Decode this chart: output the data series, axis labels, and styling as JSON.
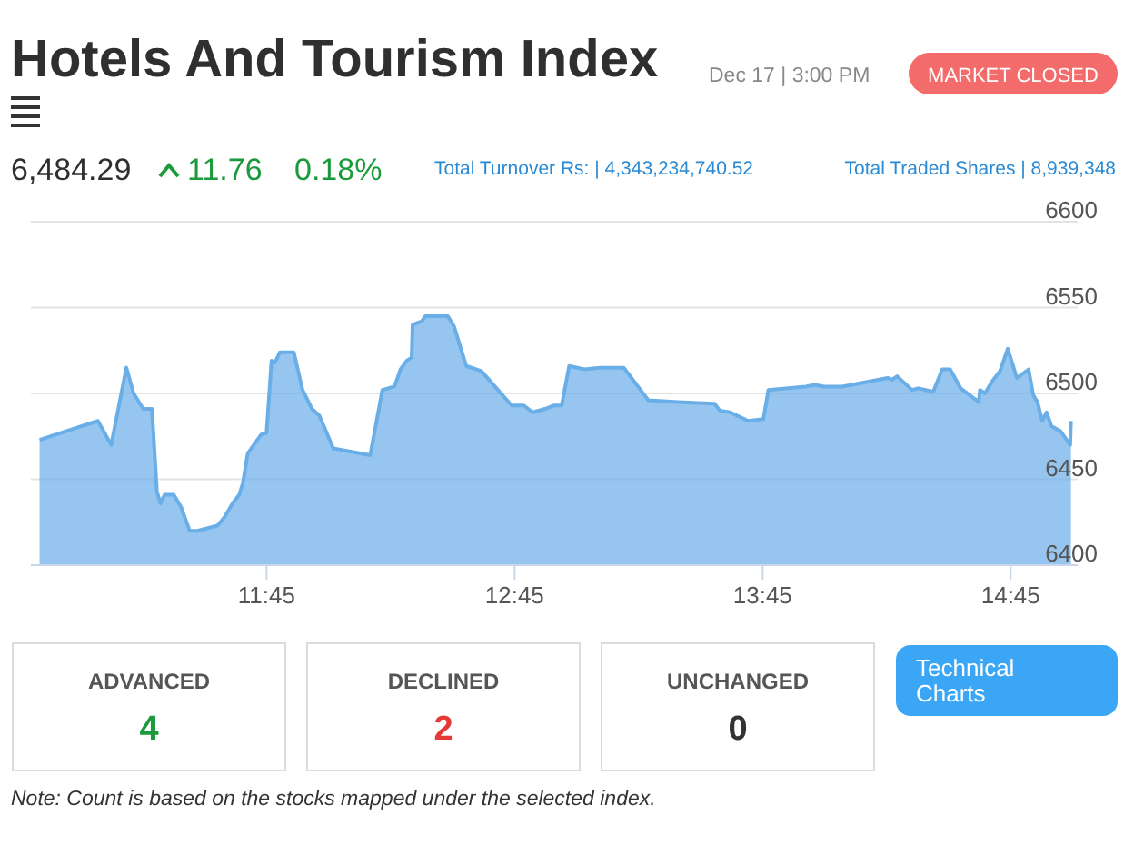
{
  "chart_data": {
    "type": "area",
    "title": "Hotels And Tourism Index",
    "annotations": [
      "Dec 17 | 3:00 PM",
      "MARKET CLOSED",
      "6,484.29",
      "11.76",
      "0.18%",
      "Total Turnover Rs: | 4,343,234,740.52",
      "Total Traded Shares | 8,939,348",
      "ADVANCED",
      "4",
      "DECLINED",
      "2",
      "UNCHANGED",
      "0",
      "Technical Charts",
      "Note: Count is based on the stocks mapped under the selected index."
    ],
    "x": [
      10.835,
      11.07,
      11.124,
      11.185,
      11.214,
      11.253,
      11.288,
      11.308,
      11.322,
      11.339,
      11.376,
      11.405,
      11.44,
      11.471,
      11.552,
      11.581,
      11.613,
      11.64,
      11.655,
      11.674,
      11.728,
      11.75,
      11.77,
      11.784,
      11.804,
      11.86,
      11.895,
      11.933,
      11.963,
      12.019,
      12.168,
      12.217,
      12.266,
      12.29,
      12.315,
      12.335,
      12.339,
      12.376,
      12.39,
      12.481,
      12.506,
      12.555,
      12.616,
      12.738,
      12.787,
      12.823,
      12.873,
      12.909,
      12.94,
      12.97,
      13.032,
      13.093,
      13.19,
      13.289,
      13.41,
      13.557,
      13.577,
      13.619,
      13.692,
      13.753,
      13.773,
      13.924,
      13.96,
      13.998,
      14.071,
      14.254,
      14.272,
      14.292,
      14.352,
      14.377,
      14.438,
      14.474,
      14.506,
      14.548,
      14.621,
      14.626,
      14.646,
      14.675,
      14.707,
      14.738,
      14.775,
      14.822,
      14.841,
      14.858,
      14.877,
      14.895,
      14.914,
      14.951,
      14.99,
      14.993
    ],
    "series": [
      {
        "color": "#6aaee8",
        "values": [
          6473,
          6484,
          6470,
          6515,
          6500,
          6491,
          6491,
          6443,
          6436,
          6441,
          6441,
          6434,
          6420,
          6420,
          6423,
          6428,
          6436,
          6441,
          6448,
          6465,
          6476,
          6477,
          6519,
          6518,
          6524,
          6524,
          6502,
          6491,
          6487,
          6468,
          6464,
          6502,
          6504,
          6514,
          6519,
          6521,
          6540,
          6542,
          6545,
          6545,
          6539,
          6516,
          6513,
          6493,
          6493,
          6489,
          6491,
          6493,
          6493,
          6516,
          6514,
          6515,
          6515,
          6496,
          6495,
          6494,
          6490,
          6489,
          6484,
          6485,
          6502,
          6504,
          6505,
          6504,
          6504,
          6509,
          6508,
          6510,
          6502,
          6503,
          6501,
          6514,
          6514,
          6503,
          6495,
          6502,
          6500,
          6507,
          6513,
          6526,
          6509,
          6514,
          6499,
          6495,
          6484,
          6489,
          6481,
          6478,
          6470,
          6484
        ]
      }
    ],
    "xlim": [
      10.8,
      15.02
    ],
    "ylim": [
      6400,
      6600
    ],
    "xticks": [
      {
        "value": 11.75,
        "label": "11:45"
      },
      {
        "value": 12.75,
        "label": "12:45"
      },
      {
        "value": 13.75,
        "label": "13:45"
      },
      {
        "value": 14.75,
        "label": "14:45"
      }
    ],
    "yticks": [
      6400,
      6450,
      6500,
      6550,
      6600
    ],
    "grid": "y"
  }
}
